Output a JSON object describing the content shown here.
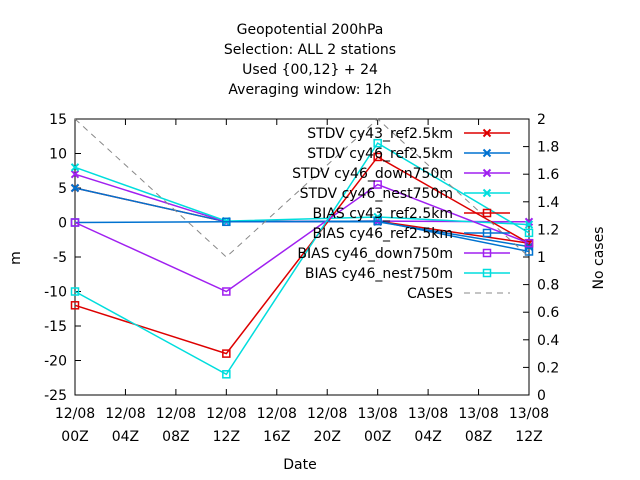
{
  "chart_data": {
    "type": "line",
    "title_lines": [
      "Geopotential 200hPa",
      "Selection: ALL      2 stations",
      "Used {00,12} + 24",
      "Averaging window: 12h"
    ],
    "xlabel": "Date",
    "ylabel": "m",
    "y2label": "No cases",
    "x_categories": [
      [
        "12/08",
        "00Z"
      ],
      [
        "12/08",
        "04Z"
      ],
      [
        "12/08",
        "08Z"
      ],
      [
        "12/08",
        "12Z"
      ],
      [
        "12/08",
        "16Z"
      ],
      [
        "12/08",
        "20Z"
      ],
      [
        "13/08",
        "00Z"
      ],
      [
        "13/08",
        "04Z"
      ],
      [
        "13/08",
        "08Z"
      ],
      [
        "13/08",
        "12Z"
      ]
    ],
    "x_hours": [
      0,
      4,
      8,
      12,
      16,
      20,
      24,
      28,
      32,
      36
    ],
    "xlim": [
      0,
      36
    ],
    "ylim": [
      -25,
      15
    ],
    "yticks": [
      "-25",
      "-20",
      "-15",
      "-10",
      "-5",
      "0",
      "5",
      "10",
      "15"
    ],
    "yticks_values": [
      -25,
      -20,
      -15,
      -10,
      -5,
      0,
      5,
      10,
      15
    ],
    "y2lim": [
      0,
      2
    ],
    "y2ticks": [
      "0",
      "0.2",
      "0.4",
      "0.6",
      "0.8",
      "1",
      "1.2",
      "1.4",
      "1.6",
      "1.8",
      "2"
    ],
    "y2ticks_values": [
      0,
      0.2,
      0.4,
      0.6,
      0.8,
      1,
      1.2,
      1.4,
      1.6,
      1.8,
      2
    ],
    "grid": false,
    "legend_position": "top-right",
    "series": [
      {
        "name": "STDV cy43_ref2.5km",
        "color": "#dd0000",
        "marker": "x",
        "x": [
          0,
          12,
          24,
          36
        ],
        "y": [
          5,
          0.1,
          0.2,
          -3
        ]
      },
      {
        "name": "STDV cy46_ref2.5km",
        "color": "#0072d0",
        "marker": "x",
        "x": [
          0,
          12,
          24,
          36
        ],
        "y": [
          5,
          0.1,
          0.1,
          -3.5
        ]
      },
      {
        "name": "STDV cy46_down750m",
        "color": "#a020f0",
        "marker": "x",
        "x": [
          0,
          12,
          24,
          36
        ],
        "y": [
          7,
          0.1,
          0.2,
          0.1
        ]
      },
      {
        "name": "STDV cy46_nest750m",
        "color": "#00dddd",
        "marker": "x",
        "x": [
          0,
          12,
          24,
          36
        ],
        "y": [
          8,
          0.2,
          0.8,
          -0.3
        ]
      },
      {
        "name": "BIAS cy43_ref2.5km",
        "color": "#dd0000",
        "marker": "square",
        "x": [
          0,
          12,
          24,
          36
        ],
        "y": [
          -12,
          -19,
          9.5,
          -3
        ]
      },
      {
        "name": "BIAS cy46_ref2.5km",
        "color": "#0072d0",
        "marker": "square",
        "x": [
          0,
          12,
          24,
          36
        ],
        "y": [
          0,
          0.1,
          0.2,
          -4.2
        ]
      },
      {
        "name": "BIAS cy46_down750m",
        "color": "#a020f0",
        "marker": "square",
        "x": [
          0,
          12,
          24,
          36
        ],
        "y": [
          0,
          -10,
          5.5,
          -3
        ]
      },
      {
        "name": "BIAS cy46_nest750m",
        "color": "#00dddd",
        "marker": "square",
        "x": [
          0,
          12,
          24,
          36
        ],
        "y": [
          -10,
          -22,
          11.5,
          -1.5
        ]
      },
      {
        "name": "CASES",
        "color": "#888888",
        "marker": "none",
        "dashed": true,
        "axis": "y2",
        "x": [
          0,
          12,
          24,
          36
        ],
        "y": [
          2,
          1,
          2,
          1
        ]
      }
    ]
  }
}
